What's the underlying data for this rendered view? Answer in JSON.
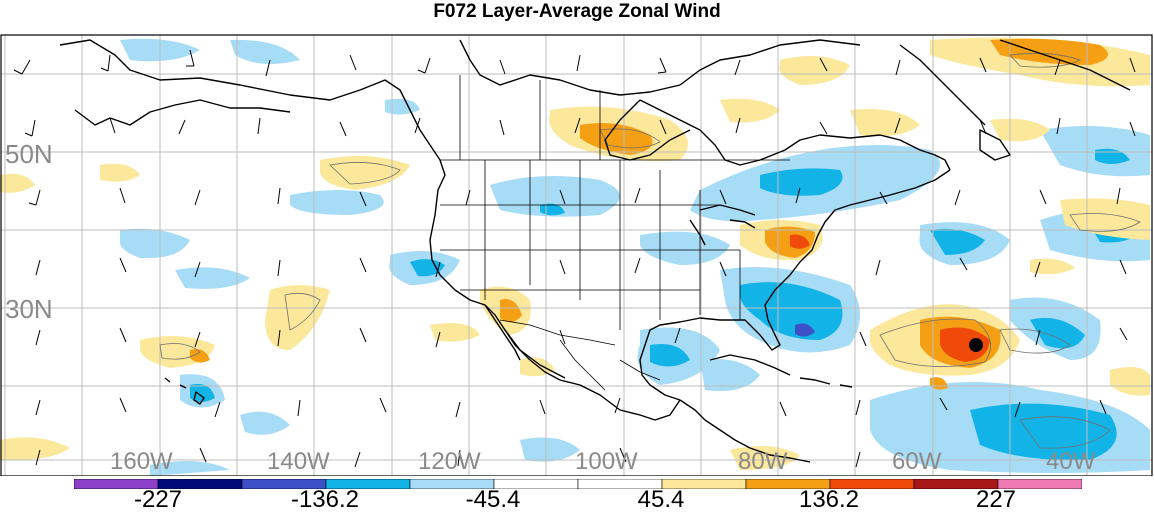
{
  "title": "F072 Layer-Average Zonal Wind",
  "lat_labels": [
    {
      "id": "lat-50n",
      "text": "50N"
    },
    {
      "id": "lat-30n",
      "text": "30N"
    }
  ],
  "lon_labels": [
    {
      "id": "lon-160w",
      "text": "160W"
    },
    {
      "id": "lon-140w",
      "text": "140W"
    },
    {
      "id": "lon-120w",
      "text": "120W"
    },
    {
      "id": "lon-100w",
      "text": "100W"
    },
    {
      "id": "lon-80w",
      "text": "80W"
    },
    {
      "id": "lon-60w",
      "text": "60W"
    },
    {
      "id": "lon-40w",
      "text": "40W"
    }
  ],
  "colorbar": {
    "colors": [
      "#8c3fc8",
      "#000a78",
      "#3c50c8",
      "#12b4e8",
      "#a6dcf6",
      "#ffffff",
      "#ffffff",
      "#fce89a",
      "#f5a014",
      "#f04a0a",
      "#a81818",
      "#f07ab4"
    ],
    "labels": [
      "-227",
      "-136.2",
      "-45.4",
      "45.4",
      "136.2",
      "227"
    ]
  },
  "palette": {
    "light_blue": "#a6dcf6",
    "mid_blue": "#12b4e8",
    "deep_blue": "#3c50c8",
    "light_yellow": "#fce89a",
    "orange": "#f5a014",
    "red_orange": "#f04a0a",
    "land_outline": "#000000",
    "grid": "#bdbdbd"
  },
  "marker": {
    "symbol": "filled-circle",
    "color": "#000000"
  }
}
